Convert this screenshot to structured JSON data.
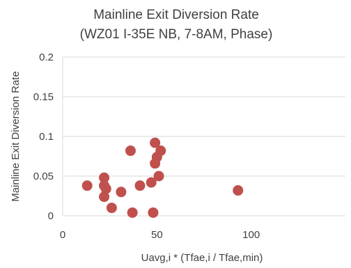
{
  "chart_data": {
    "type": "scatter",
    "title_lines": [
      "Mainline Exit Diversion Rate",
      "(WZ01 I-35E NB, 7-8AM, Phase)"
    ],
    "xlabel": "Uavg,i * (Tfae,i / Tfae,min)",
    "ylabel": "Mainline Exit Diversion Rate",
    "xlim": [
      0,
      150
    ],
    "ylim": [
      0,
      0.2
    ],
    "xticks": [
      0,
      50,
      100
    ],
    "xtick_labels": [
      "0",
      "50",
      "100"
    ],
    "yticks": [
      0,
      0.05,
      0.1,
      0.15,
      0.2
    ],
    "ytick_labels": [
      "0",
      "0.05",
      "0.1",
      "0.15",
      "0.2"
    ],
    "grid": "horizontal",
    "marker_color": "#c0504d",
    "points": [
      {
        "x": 13,
        "y": 0.038
      },
      {
        "x": 22,
        "y": 0.048
      },
      {
        "x": 22,
        "y": 0.038
      },
      {
        "x": 23,
        "y": 0.034
      },
      {
        "x": 22,
        "y": 0.024
      },
      {
        "x": 26,
        "y": 0.01
      },
      {
        "x": 31,
        "y": 0.03
      },
      {
        "x": 36,
        "y": 0.082
      },
      {
        "x": 37,
        "y": 0.004
      },
      {
        "x": 41,
        "y": 0.038
      },
      {
        "x": 47,
        "y": 0.042
      },
      {
        "x": 48,
        "y": 0.004
      },
      {
        "x": 49,
        "y": 0.092
      },
      {
        "x": 50,
        "y": 0.074
      },
      {
        "x": 49,
        "y": 0.066
      },
      {
        "x": 52,
        "y": 0.082
      },
      {
        "x": 51,
        "y": 0.05
      },
      {
        "x": 93,
        "y": 0.032
      }
    ]
  }
}
